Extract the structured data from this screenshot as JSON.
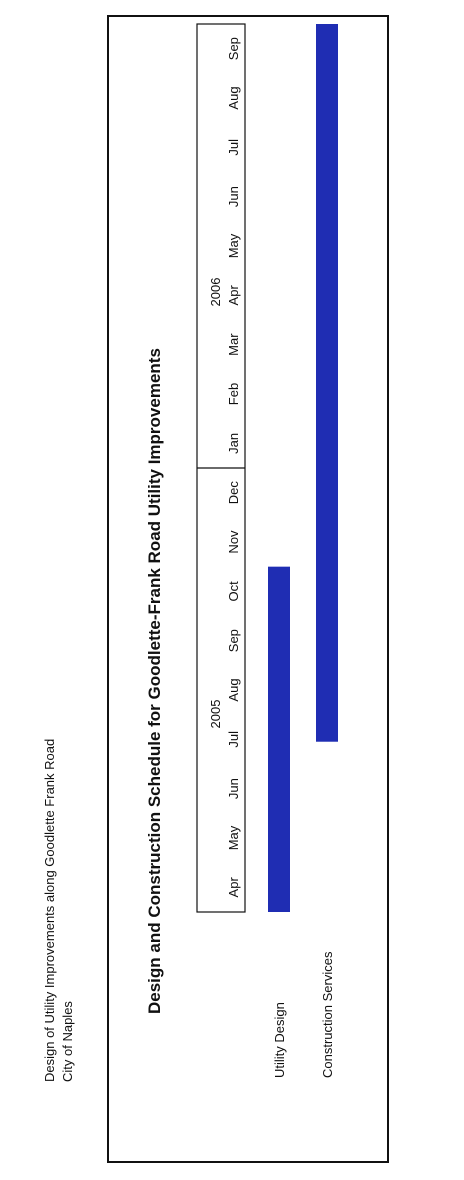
{
  "header": {
    "line1": "Design of Utility Improvements along Goodlette Frank Road",
    "line2": "City of Naples"
  },
  "chart_data": {
    "type": "gantt",
    "title": "Design and Construction Schedule for Goodlette-Frank Road Utility Improvements",
    "years": [
      {
        "label": "2005",
        "months": [
          "Apr",
          "May",
          "Jun",
          "Jul",
          "Aug",
          "Sep",
          "Oct",
          "Nov",
          "Dec"
        ]
      },
      {
        "label": "2006",
        "months": [
          "Jan",
          "Feb",
          "Mar",
          "Apr",
          "May",
          "Jun",
          "Jul",
          "Aug",
          "Sep"
        ]
      }
    ],
    "tasks": [
      {
        "name": "Utility Design",
        "start": "2005-04-01",
        "end": "2005-10-31"
      },
      {
        "name": "Construction Services",
        "start": "2005-07-15",
        "end": "2006-09-30"
      }
    ],
    "bar_color": "#1f2db3"
  }
}
